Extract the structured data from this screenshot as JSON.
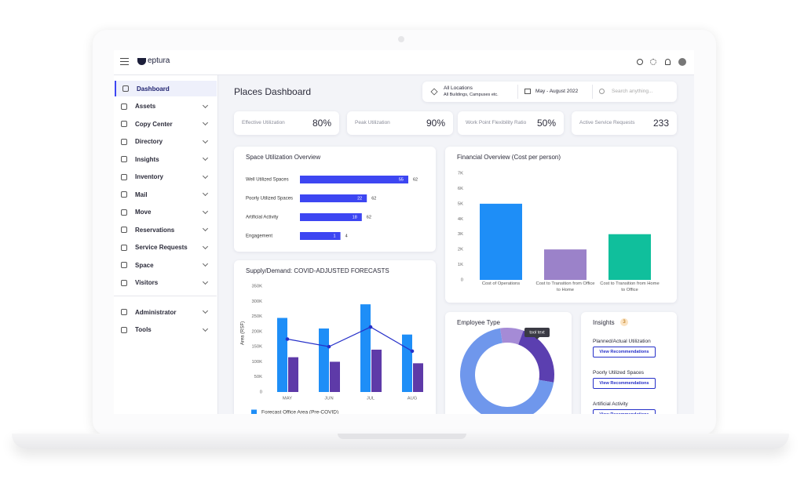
{
  "app": {
    "brand": "eptura",
    "nav": [
      "Dashboard",
      "Assets",
      "Copy Center",
      "Directory",
      "Insights",
      "Inventory",
      "Mail",
      "Move",
      "Reservations",
      "Service Requests",
      "Space",
      "Visitors"
    ],
    "nav_secondary": [
      "Administrator",
      "Tools"
    ]
  },
  "header": {
    "title": "Places Dashboard",
    "location_title": "All Locations",
    "location_subtitle": "All Buildings, Campuses etc.",
    "date_range": "May - August 2022",
    "search_placeholder": "Search anything..."
  },
  "kpis": [
    {
      "label": "Effective Utilization",
      "value": "80%"
    },
    {
      "label": "Peak Utilization",
      "value": "90%"
    },
    {
      "label": "Work Point Flexibility Ratio",
      "value": "50%"
    },
    {
      "label": "Active Service Requests",
      "value": "233"
    }
  ],
  "space_utilization": {
    "type": "bar",
    "title": "Space Utilization Overview",
    "categories": [
      "Well Utilized Spaces",
      "Poorly Utilized Spaces",
      "Artificial Activity",
      "Engagement"
    ],
    "values": [
      55,
      22,
      18,
      1
    ],
    "totals": [
      62,
      62,
      62,
      4
    ],
    "color": "#3d46f2"
  },
  "financial_overview": {
    "type": "bar",
    "title": "Financial Overview (Cost per person)",
    "categories": [
      "Cost of Operations",
      "Cost to Transition from Office to Home",
      "Cost to Transition from Home to Office"
    ],
    "values": [
      5000,
      2000,
      3000
    ],
    "colors": [
      "#1e8ef7",
      "#9b82c9",
      "#10bf9c"
    ],
    "ylim": [
      0,
      7000
    ],
    "yticks": [
      0,
      {
        "value": 1000,
        "label": "1K"
      },
      {
        "value": 2000,
        "label": "2K"
      },
      {
        "value": 3000,
        "label": "3K"
      },
      {
        "value": 4000,
        "label": "4K"
      },
      {
        "value": 5000,
        "label": "5K"
      },
      {
        "value": 6000,
        "label": "6K"
      },
      {
        "value": 7000,
        "label": "7K"
      }
    ]
  },
  "supply_demand": {
    "type": "bar+line",
    "title": "Supply/Demand: COVID-ADJUSTED FORECASTS",
    "y_label": "Area (RSF)",
    "categories": [
      "MAY",
      "JUN",
      "JUL",
      "AUG"
    ],
    "ylim": [
      0,
      350000
    ],
    "yticks": [
      0,
      {
        "value": 50000,
        "label": "50K"
      },
      {
        "value": 100000,
        "label": "100K"
      },
      {
        "value": 150000,
        "label": "150K"
      },
      {
        "value": 200000,
        "label": "200K"
      },
      {
        "value": 250000,
        "label": "250K"
      },
      {
        "value": 300000,
        "label": "300K"
      },
      {
        "value": 350000,
        "label": "350K"
      }
    ],
    "series": [
      {
        "name": "Forecast Office Area (Pre-COVID)",
        "type": "bar",
        "color": "#1e8ef7",
        "values": [
          245000,
          210000,
          290000,
          190000
        ]
      },
      {
        "type": "bar",
        "color": "#5e3aa8",
        "values": [
          115000,
          100000,
          140000,
          95000
        ]
      },
      {
        "type": "line",
        "color": "#2630c9",
        "values": [
          175000,
          150000,
          215000,
          135000
        ]
      }
    ]
  },
  "employee_type": {
    "type": "donut",
    "title": "Employee Type",
    "values": [
      8,
      22,
      70
    ],
    "colors": [
      "#a58bd6",
      "#5b3fb0",
      "#6f97ec"
    ],
    "tooltip": "tool text"
  },
  "insights": {
    "title": "Insights",
    "count": "3",
    "items": [
      {
        "label": "Planned/Actual Utilization",
        "button": "View Recommendations"
      },
      {
        "label": "Poorly Utilized Spaces",
        "button": "View Recommendations"
      },
      {
        "label": "Artificial Activity",
        "button": "View Recommendations"
      }
    ]
  }
}
